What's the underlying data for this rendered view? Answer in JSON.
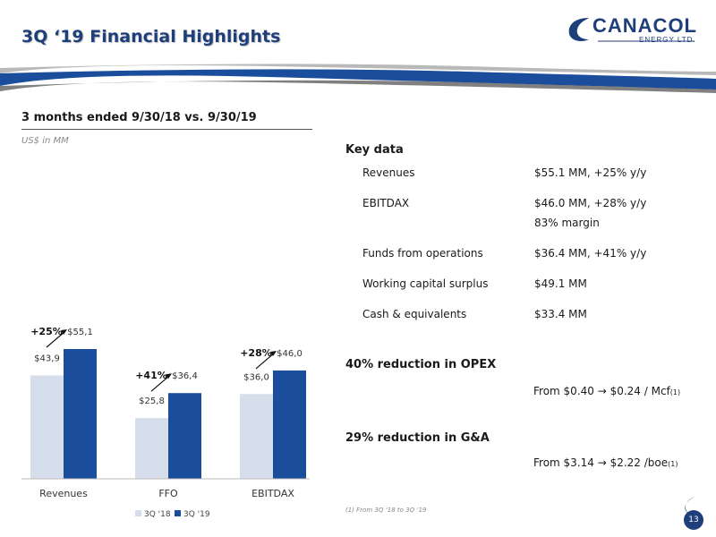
{
  "header": {
    "title": "3Q ‘19 Financial Highlights",
    "logo_name": "CANACOL",
    "logo_sub": "ENERGY LTD."
  },
  "subtitle": "3 months ended 9/30/18 vs. 9/30/19",
  "units": "US$ in MM",
  "chart_data": {
    "type": "bar",
    "categories": [
      "Revenues",
      "FFO",
      "EBITDAX"
    ],
    "series": [
      {
        "name": "3Q '18",
        "values": [
          43.9,
          25.8,
          36.0
        ],
        "labels": [
          "$43,9",
          "$25,8",
          "$36,0"
        ],
        "color": "#d6deeb"
      },
      {
        "name": "3Q '19",
        "values": [
          55.1,
          36.4,
          46.0
        ],
        "labels": [
          "$55,1",
          "$36,4",
          "$46,0"
        ],
        "color": "#1a4d9c"
      }
    ],
    "growth_labels": [
      "+25%",
      "+41%",
      "+28%"
    ],
    "ylim": [
      0,
      60
    ],
    "grid": false,
    "legend": "bottom"
  },
  "key_data": {
    "title": "Key data",
    "rows": [
      {
        "label": "Revenues",
        "value": "$55.1 MM, +25% y/y",
        "value2": ""
      },
      {
        "label": "EBITDAX",
        "value": "$46.0 MM, +28% y/y",
        "value2": "83% margin"
      },
      {
        "label": "Funds from operations",
        "value": "$36.4 MM, +41% y/y",
        "value2": ""
      },
      {
        "label": "Working capital surplus",
        "value": "$49.1 MM",
        "value2": ""
      },
      {
        "label": "Cash & equivalents",
        "value": "$33.4 MM",
        "value2": ""
      }
    ]
  },
  "opex": {
    "title": "40% reduction in OPEX",
    "detail": "From $0.40 → $0.24 / Mcf",
    "note": "(1)"
  },
  "ga": {
    "title": "29% reduction in G&A",
    "detail": "From $3.14 → $2.22 /boe",
    "note": "(1)"
  },
  "footnote": "(1) From 3Q ‘18 to 3Q ‘19",
  "page_number": "13",
  "colors": {
    "primary": "#1f3f7a",
    "bar_2018": "#d6deeb",
    "bar_2019": "#1a4d9c"
  }
}
